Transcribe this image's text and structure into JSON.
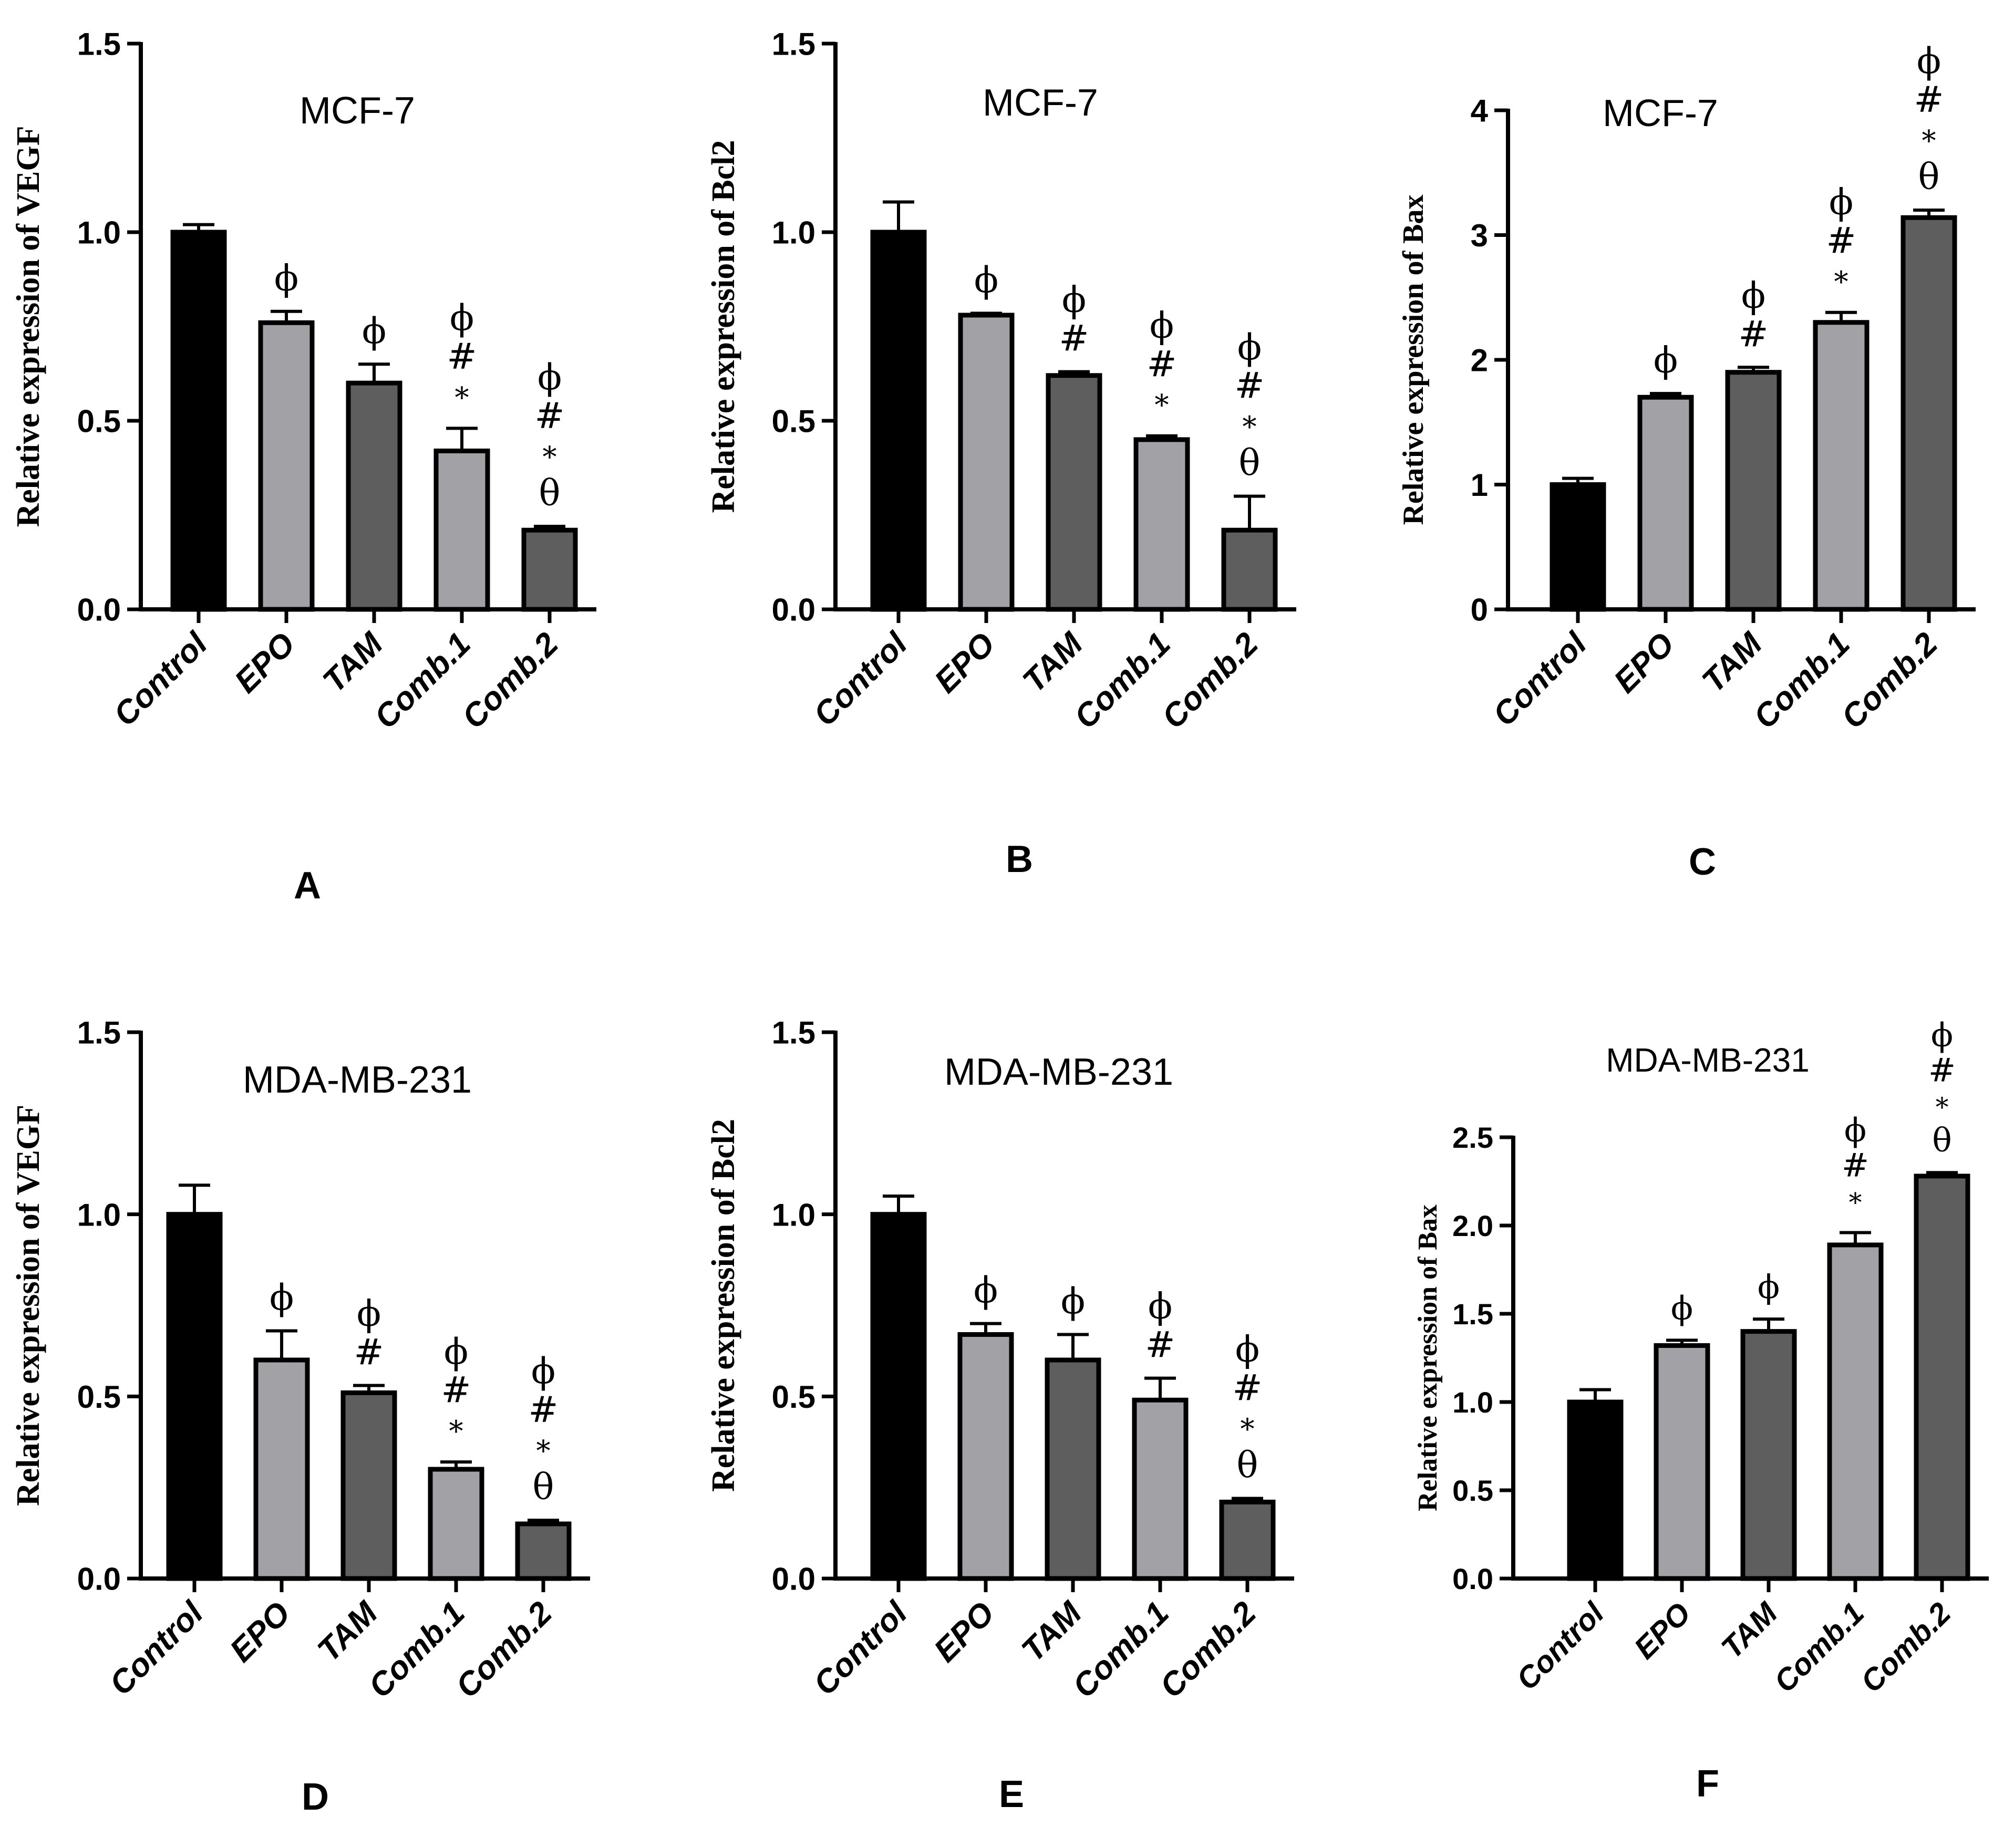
{
  "colors": {
    "Control": "#000000",
    "EPO": "#a1a1a6",
    "TAM": "#5e5e5e",
    "Comb.1": "#a1a1a6",
    "Comb.2": "#5e5e5e"
  },
  "chart_data": [
    {
      "type": "bar",
      "panel": "A",
      "title": "MCF-7",
      "ylabel": "Relative expression of VEGF",
      "xlabel": "",
      "categories": [
        "Control",
        "EPO",
        "TAM",
        "Comb.1",
        "Comb.2"
      ],
      "values": [
        1.0,
        0.76,
        0.6,
        0.42,
        0.21
      ],
      "errors": [
        0.02,
        0.03,
        0.05,
        0.06,
        0.01
      ],
      "ylim": [
        0,
        1.5
      ],
      "yticks": [
        "0.0",
        "0.5",
        "1.0",
        "1.5"
      ],
      "ytick_values": [
        0,
        0.5,
        1.0,
        1.5
      ],
      "significance": [
        [],
        [
          "ϕ"
        ],
        [
          "ϕ"
        ],
        [
          "ϕ",
          "#",
          "*"
        ],
        [
          "ϕ",
          "#",
          "*",
          "θ"
        ]
      ]
    },
    {
      "type": "bar",
      "panel": "B",
      "title": "MCF-7",
      "ylabel": "Relative expression of Bcl2",
      "xlabel": "",
      "categories": [
        "Control",
        "EPO",
        "TAM",
        "Comb.1",
        "Comb.2"
      ],
      "values": [
        1.0,
        0.78,
        0.62,
        0.45,
        0.21
      ],
      "errors": [
        0.08,
        0.005,
        0.01,
        0.01,
        0.09
      ],
      "ylim": [
        0,
        1.5
      ],
      "yticks": [
        "0.0",
        "0.5",
        "1.0",
        "1.5"
      ],
      "ytick_values": [
        0,
        0.5,
        1.0,
        1.5
      ],
      "significance": [
        [],
        [
          "ϕ"
        ],
        [
          "ϕ",
          "#"
        ],
        [
          "ϕ",
          "#",
          "*"
        ],
        [
          "ϕ",
          "#",
          "*",
          "θ"
        ]
      ]
    },
    {
      "type": "bar",
      "panel": "C",
      "title": "MCF-7",
      "ylabel": "Relative expression of Bax",
      "xlabel": "",
      "categories": [
        "Control",
        "EPO",
        "TAM",
        "Comb.1",
        "Comb.2"
      ],
      "values": [
        1.0,
        1.7,
        1.9,
        2.3,
        3.14
      ],
      "errors": [
        0.05,
        0.03,
        0.04,
        0.08,
        0.06
      ],
      "ylim": [
        0,
        4
      ],
      "yticks": [
        "0",
        "1",
        "2",
        "3",
        "4"
      ],
      "ytick_values": [
        0,
        1,
        2,
        3,
        4
      ],
      "significance": [
        [],
        [
          "ϕ"
        ],
        [
          "ϕ",
          "#"
        ],
        [
          "ϕ",
          "#",
          "*"
        ],
        [
          "ϕ",
          "#",
          "*",
          "θ"
        ]
      ]
    },
    {
      "type": "bar",
      "panel": "D",
      "title": "MDA-MB-231",
      "ylabel": "Relative expression of VEGF",
      "xlabel": "",
      "categories": [
        "Control",
        "EPO",
        "TAM",
        "Comb.1",
        "Comb.2"
      ],
      "values": [
        1.0,
        0.6,
        0.51,
        0.3,
        0.15
      ],
      "errors": [
        0.08,
        0.08,
        0.02,
        0.02,
        0.01
      ],
      "ylim": [
        0,
        1.5
      ],
      "yticks": [
        "0.0",
        "0.5",
        "1.0",
        "1.5"
      ],
      "ytick_values": [
        0,
        0.5,
        1.0,
        1.5
      ],
      "significance": [
        [],
        [
          "ϕ"
        ],
        [
          "ϕ",
          "#"
        ],
        [
          "ϕ",
          "#",
          "*"
        ],
        [
          "ϕ",
          "#",
          "*",
          "θ"
        ]
      ]
    },
    {
      "type": "bar",
      "panel": "E",
      "title": "MDA-MB-231",
      "ylabel": "Relative expression of Bcl2",
      "xlabel": "",
      "categories": [
        "Control",
        "EPO",
        "TAM",
        "Comb.1",
        "Comb.2"
      ],
      "values": [
        1.0,
        0.67,
        0.6,
        0.49,
        0.21
      ],
      "errors": [
        0.05,
        0.03,
        0.07,
        0.06,
        0.01
      ],
      "ylim": [
        0,
        1.5
      ],
      "yticks": [
        "0.0",
        "0.5",
        "1.0",
        "1.5"
      ],
      "ytick_values": [
        0,
        0.5,
        1.0,
        1.5
      ],
      "significance": [
        [],
        [
          "ϕ"
        ],
        [
          "ϕ"
        ],
        [
          "ϕ",
          "#"
        ],
        [
          "ϕ",
          "#",
          "*",
          "θ"
        ]
      ]
    },
    {
      "type": "bar",
      "panel": "F",
      "title": "MDA-MB-231",
      "ylabel": "Relative expression of Bax",
      "xlabel": "",
      "categories": [
        "Control",
        "EPO",
        "TAM",
        "Comb.1",
        "Comb.2"
      ],
      "values": [
        1.0,
        1.32,
        1.4,
        1.89,
        2.28
      ],
      "errors": [
        0.07,
        0.03,
        0.07,
        0.07,
        0.02
      ],
      "ylim": [
        0,
        2.5
      ],
      "yticks": [
        "0.0",
        "0.5",
        "1.0",
        "1.5",
        "2.0",
        "2.5"
      ],
      "ytick_values": [
        0,
        0.5,
        1.0,
        1.5,
        2.0,
        2.5
      ],
      "significance": [
        [],
        [
          "ϕ"
        ],
        [
          "ϕ"
        ],
        [
          "ϕ",
          "#",
          "*"
        ],
        [
          "ϕ",
          "#",
          "*",
          "θ"
        ]
      ]
    }
  ]
}
